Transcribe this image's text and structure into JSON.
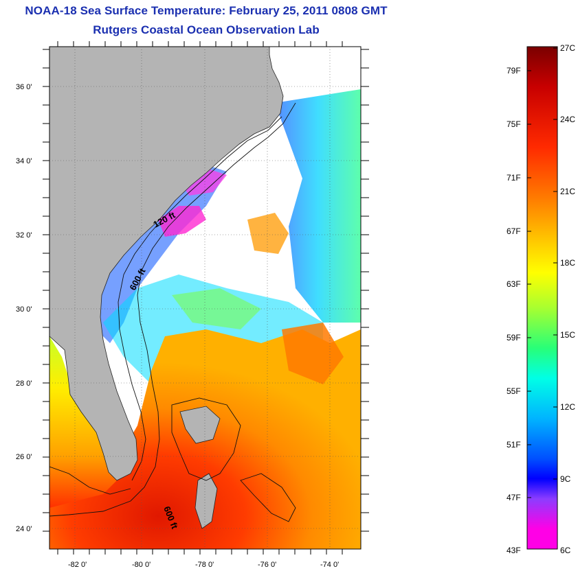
{
  "title": "NOAA-18 Sea Surface Temperature:  February 25, 2011 0808 GMT",
  "subtitle": "Rutgers Coastal Ocean Observation Lab",
  "latitude_ticks": [
    "36 0'",
    "34 0'",
    "32 0'",
    "30 0'",
    "28 0'",
    "26 0'",
    "24 0'"
  ],
  "longitude_ticks": [
    "-82 0'",
    "-80 0'",
    "-78 0'",
    "-76 0'",
    "-74 0'"
  ],
  "contour_labels": [
    "120 ft",
    "600 ft",
    "600 ft"
  ],
  "colorbar": {
    "celsius": [
      "27C",
      "24C",
      "21C",
      "18C",
      "15C",
      "12C",
      "9C",
      "6C"
    ],
    "fahrenheit": [
      "79F",
      "75F",
      "71F",
      "67F",
      "63F",
      "59F",
      "55F",
      "51F",
      "47F",
      "43F"
    ],
    "colors": [
      "#7a0000",
      "#e00000",
      "#ff5a00",
      "#ff9e00",
      "#ffe600",
      "#c8ff28",
      "#28ff78",
      "#00ffe6",
      "#00b4ff",
      "#0050ff",
      "#0000ff",
      "#8c3cff",
      "#ff00e6"
    ]
  },
  "colors": {
    "land": "#b4b4b4",
    "cloud_mask": "#ffffff",
    "title": "#1a2fb0"
  }
}
